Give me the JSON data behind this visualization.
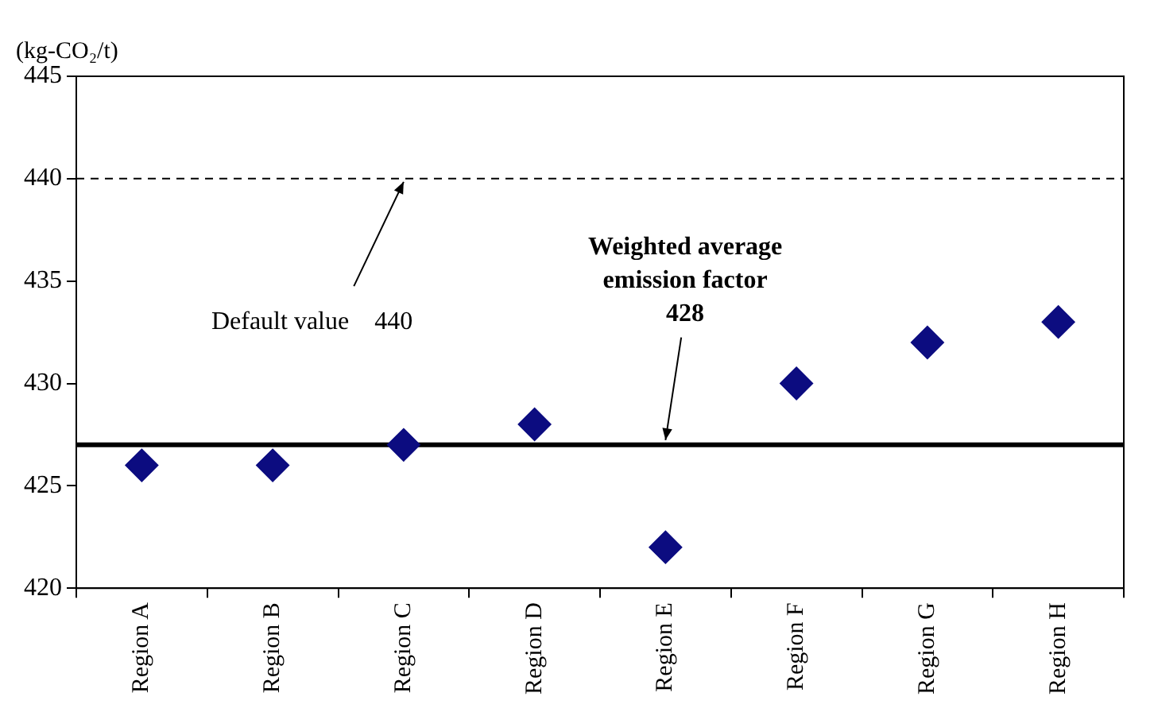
{
  "chart_data": {
    "type": "scatter",
    "ylabel": "(kg-CO₂/t)",
    "categories": [
      "Region A",
      "Region B",
      "Region C",
      "Region D",
      "Region E",
      "Region F",
      "Region G",
      "Region H"
    ],
    "values": [
      426,
      426,
      427,
      428,
      422,
      430,
      432,
      433
    ],
    "color": "#0c0c80",
    "marker": "diamond",
    "ylim": [
      420,
      445
    ],
    "yticks": [
      420,
      425,
      430,
      435,
      440,
      445
    ],
    "ref_lines": [
      {
        "axis": "y",
        "value": 440,
        "line_style": "dashed",
        "color": "#000000"
      },
      {
        "axis": "y",
        "value": 427,
        "line_style": "solid",
        "color": "#000000"
      }
    ],
    "annotations": [
      {
        "text": "Default value    440",
        "x": "Region C",
        "y": 440
      },
      {
        "text": "Weighted average\nemission factor\n428",
        "x": "Region E",
        "y": 427
      }
    ],
    "legend": false
  }
}
